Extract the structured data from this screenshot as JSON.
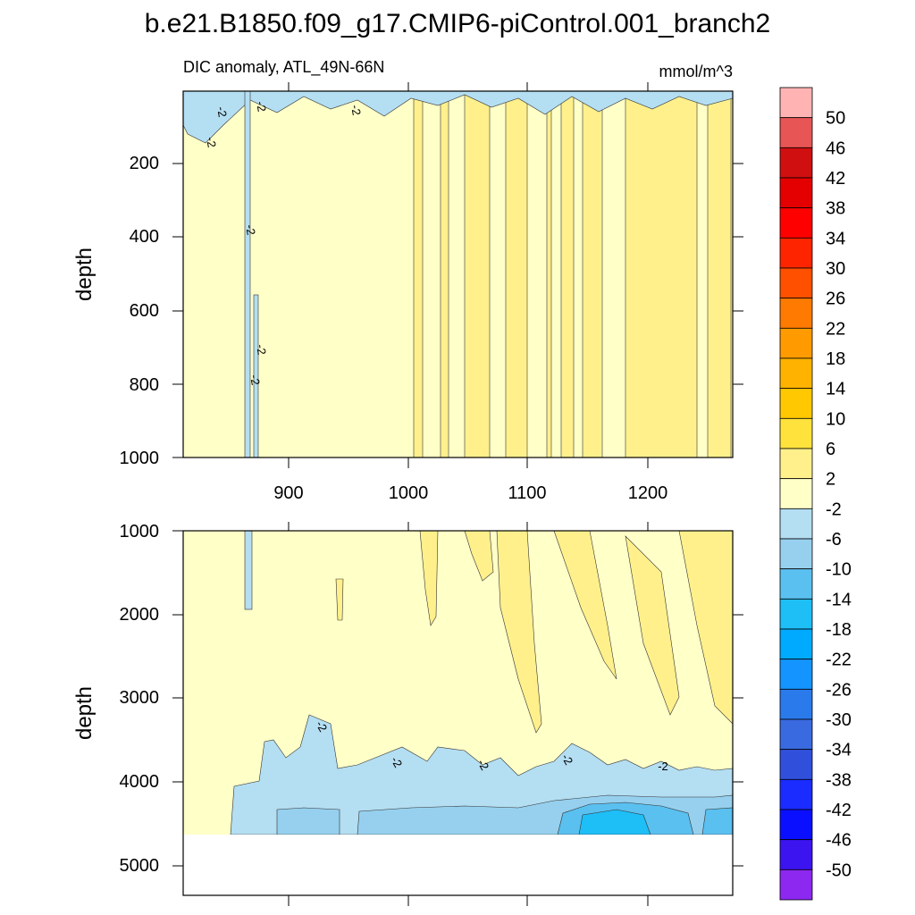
{
  "title": "b.e21.B1850.f09_g17.CMIP6-piControl.001_branch2",
  "subtitle_left": "DIC anomaly, ATL_49N-66N",
  "units": "mmol/m^3",
  "chart_data": [
    {
      "type": "heatmap",
      "panel": "upper",
      "xlabel": "",
      "ylabel": "depth",
      "xlim": [
        810,
        1270
      ],
      "ylim": [
        0,
        1000
      ],
      "y_inverted": true,
      "xticks": [
        900,
        1000,
        1100,
        1200
      ],
      "yticks": [
        200,
        400,
        600,
        800,
        1000
      ],
      "contour_labels": [
        "-2",
        "-2",
        "-2",
        "-2",
        "-2",
        "-2",
        "-2"
      ],
      "description_values": "mostly 2 to -2 band; -6 to -2 near surface; 2 to 6 columns after year 1000"
    },
    {
      "type": "heatmap",
      "panel": "lower",
      "xlabel": "",
      "ylabel": "depth",
      "xlim": [
        810,
        1270
      ],
      "ylim": [
        1000,
        5400
      ],
      "y_inverted": true,
      "xticks": [
        900,
        1000,
        1100,
        1200
      ],
      "yticks": [
        1000,
        2000,
        3000,
        4000,
        5000
      ],
      "contour_labels": [
        "-2",
        "-2",
        "-2",
        "-2",
        "-2"
      ],
      "missing_below": 4630
    }
  ],
  "colorbar": {
    "labels": [
      "50",
      "46",
      "42",
      "38",
      "34",
      "30",
      "26",
      "22",
      "18",
      "14",
      "10",
      "6",
      "2",
      "-2",
      "-6",
      "-10",
      "-14",
      "-18",
      "-22",
      "-26",
      "-30",
      "-34",
      "-38",
      "-42",
      "-46",
      "-50"
    ],
    "colors": [
      "#ffb3b3",
      "#e85555",
      "#d01010",
      "#e40000",
      "#ff0000",
      "#ff2400",
      "#ff5000",
      "#ff7a00",
      "#ff9a00",
      "#ffb300",
      "#ffc800",
      "#ffe23c",
      "#fff08c",
      "#ffffc8",
      "#b4def2",
      "#96d0ee",
      "#5ac0f0",
      "#1ebef6",
      "#00aaff",
      "#1494ff",
      "#2a7aec",
      "#3a6ae0",
      "#3050dc",
      "#1a2cff",
      "#0a10ff",
      "#3c14f0",
      "#8c28f0"
    ]
  }
}
